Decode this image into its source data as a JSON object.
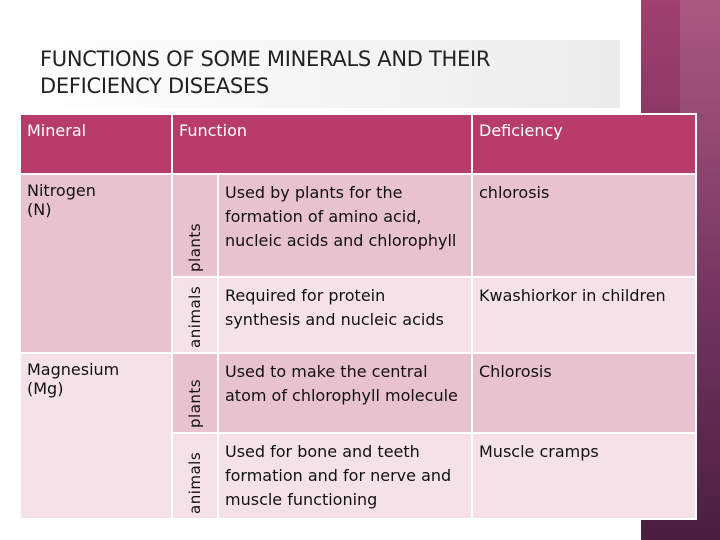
{
  "title": {
    "line1": "FUNCTIONS OF SOME MINERALS AND THEIR",
    "line2": "DEFICIENCY DISEASES"
  },
  "table": {
    "headers": {
      "mineral": "Mineral",
      "function": "Function",
      "deficiency": "Deficiency"
    },
    "rows": [
      {
        "mineral": "Nitrogen (N)",
        "organism": "plants",
        "function": "Used by plants for the formation of amino acid, nucleic acids and chlorophyll",
        "deficiency": "chlorosis"
      },
      {
        "organism": "animals",
        "function": "Required for protein synthesis and nucleic acids",
        "deficiency": "Kwashiorkor in children"
      },
      {
        "mineral": "Magnesium (Mg)",
        "organism": "plants",
        "function": "Used to make the central atom of chlorophyll molecule",
        "deficiency": "Chlorosis"
      },
      {
        "organism": "animals",
        "function": "Used for bone and teeth formation and for nerve and muscle functioning",
        "deficiency": "Muscle cramps"
      }
    ]
  },
  "colors": {
    "header": "#b83c6a",
    "row_dark": "#e9c2cf",
    "row_light": "#f4e2e8",
    "side_band": "#6b2a55"
  }
}
